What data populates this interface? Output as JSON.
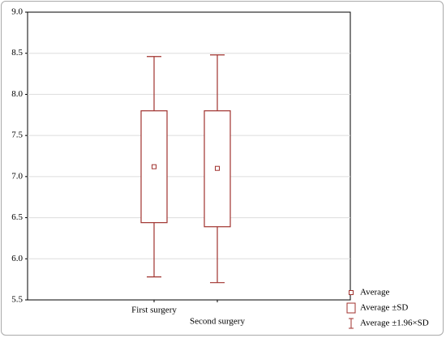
{
  "chart_data": {
    "type": "box",
    "categories": [
      "First surgery",
      "Second surgery"
    ],
    "mean": [
      7.12,
      7.1
    ],
    "sd_low": [
      6.44,
      6.39
    ],
    "sd_high": [
      7.8,
      7.8
    ],
    "whisker_low": [
      5.78,
      5.71
    ],
    "whisker_high": [
      8.46,
      8.48
    ],
    "color": "#a0322e",
    "ylim": [
      5.5,
      9
    ],
    "yticks": [
      5.5,
      {
        "value": 6,
        "label": "6.0"
      },
      6.5,
      {
        "value": 7,
        "label": "7.0"
      },
      7.5,
      {
        "value": 8,
        "label": "8.0"
      },
      8.5,
      {
        "value": 9,
        "label": "9.0"
      }
    ],
    "grid": true,
    "legend": "bottom-right",
    "legend_labels": [
      "Average",
      "Average ±SD",
      "Average ±1.96×SD"
    ]
  }
}
